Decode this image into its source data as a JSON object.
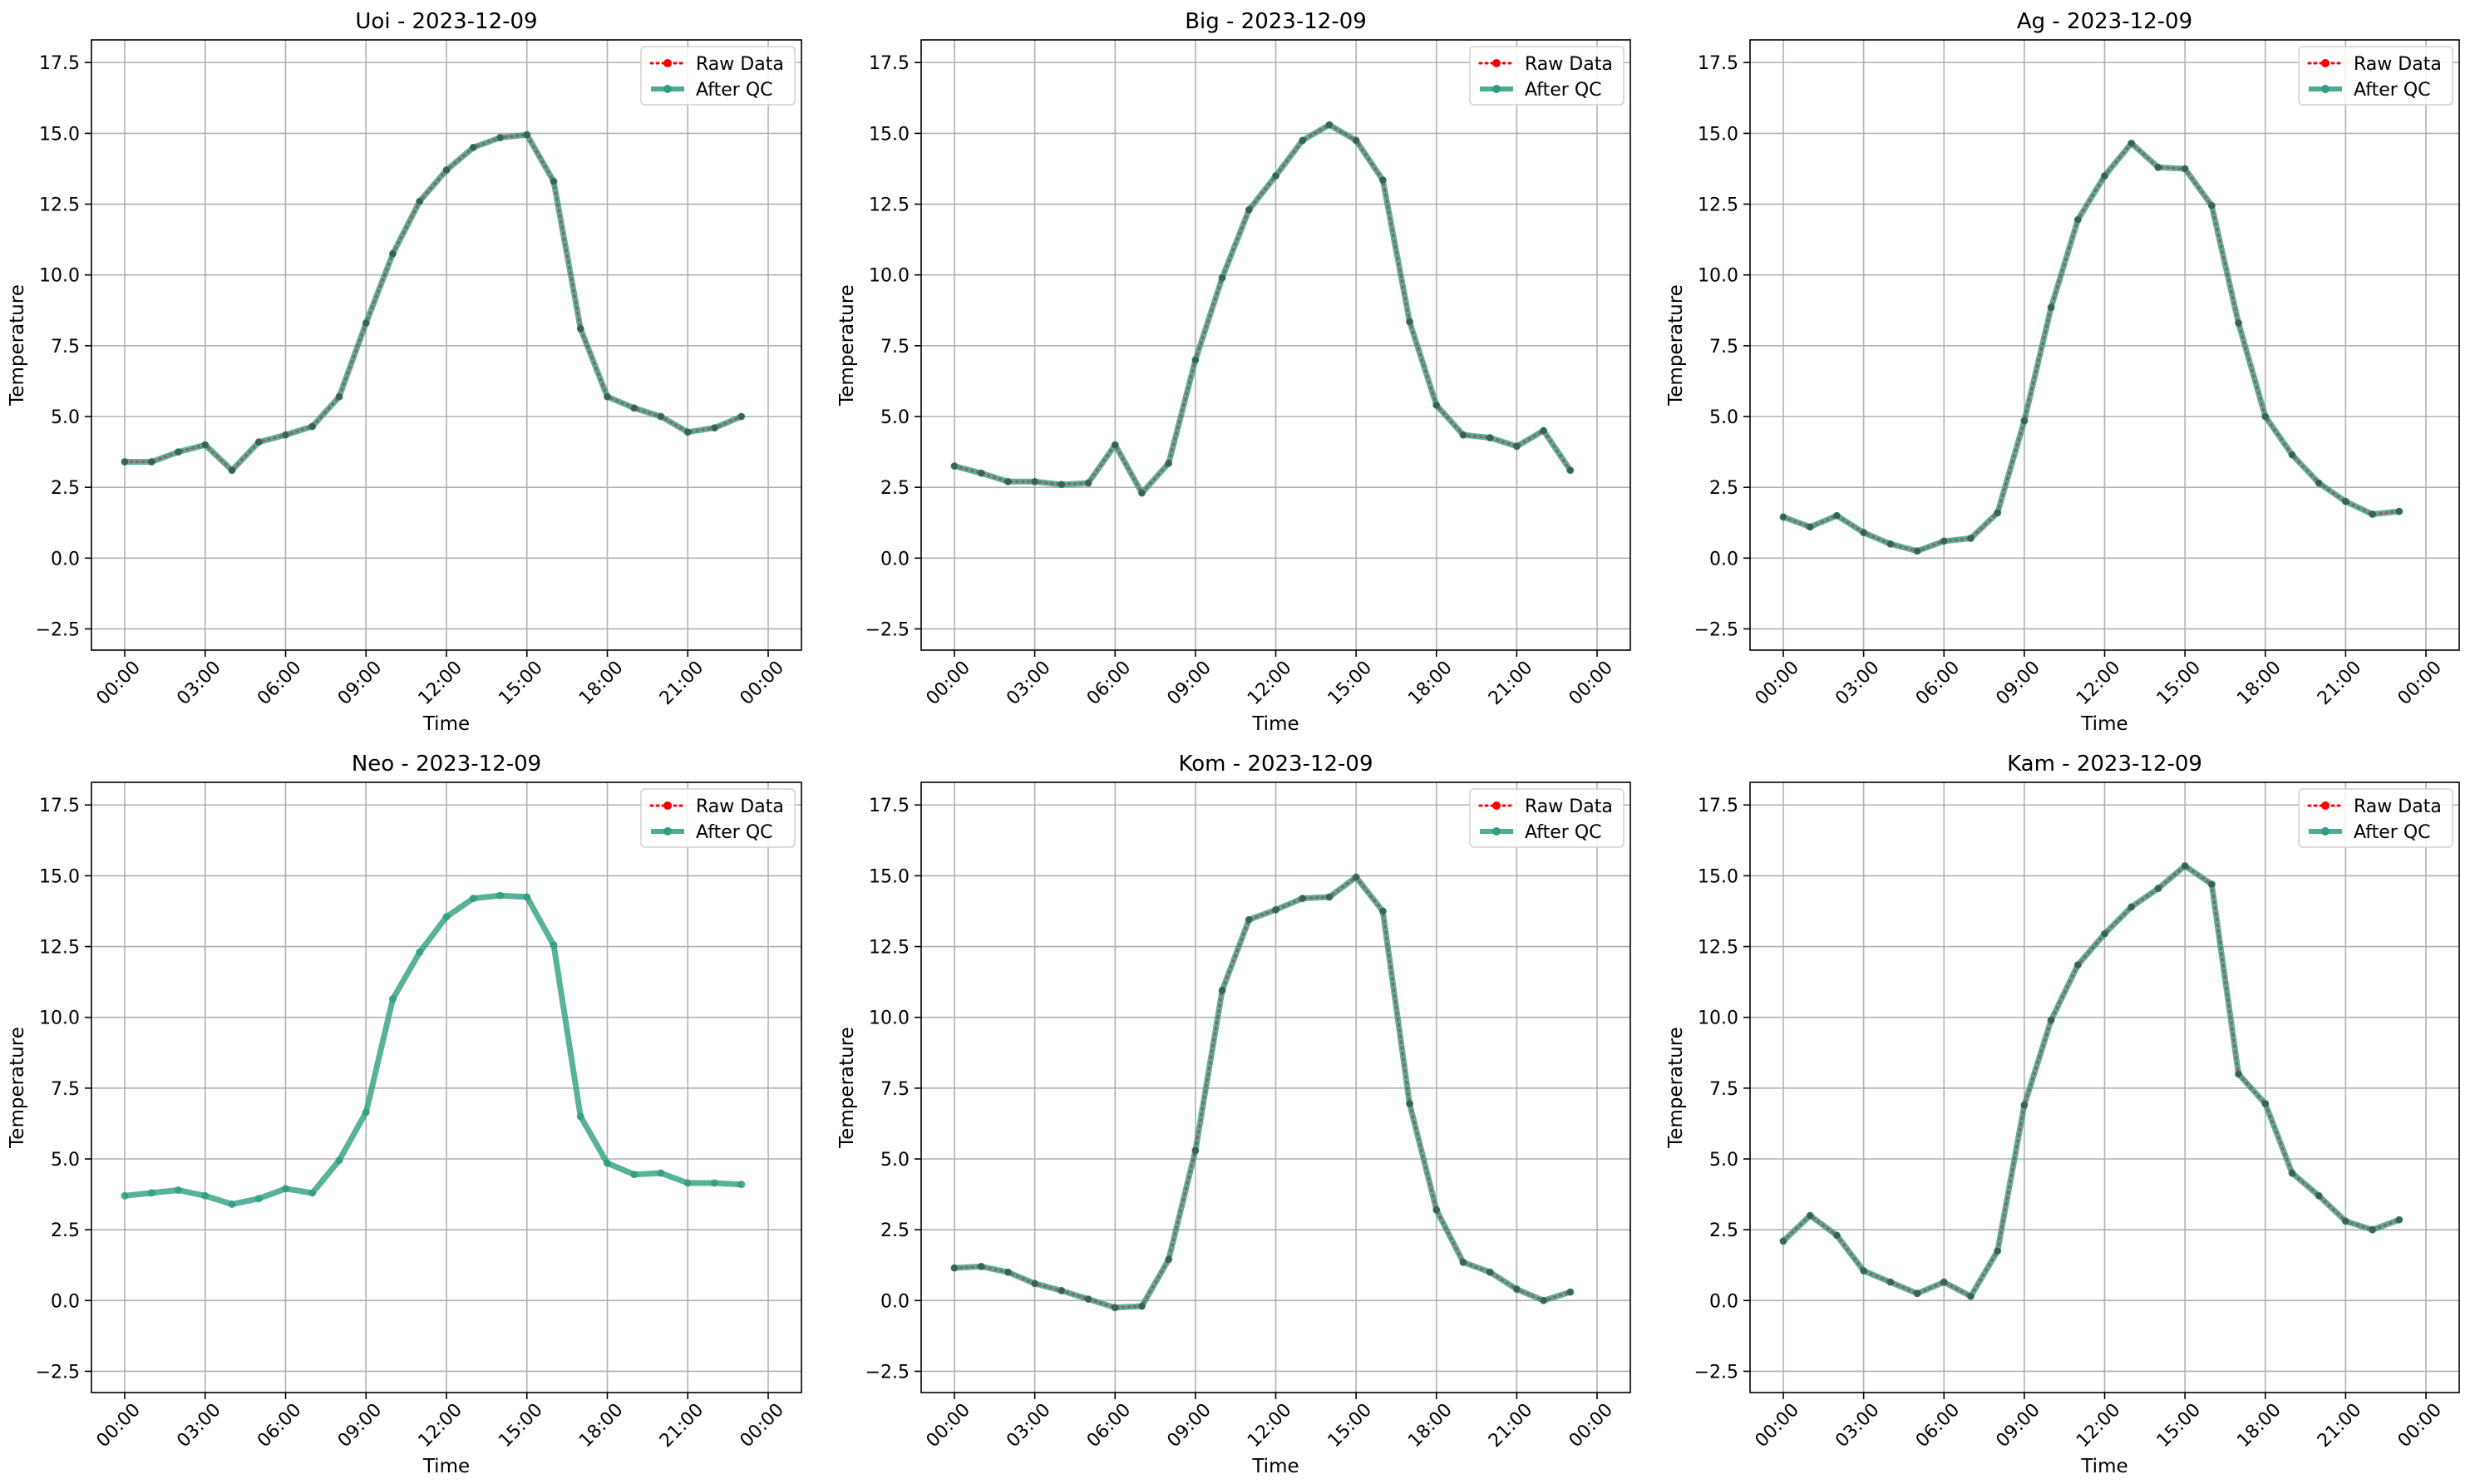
{
  "chart_data": [
    {
      "type": "line",
      "title": "Uoi - 2023-12-09",
      "xlabel": "Time",
      "ylabel": "Temperature",
      "x": [
        "00:00",
        "01:00",
        "02:00",
        "03:00",
        "04:00",
        "05:00",
        "06:00",
        "07:00",
        "08:00",
        "09:00",
        "10:00",
        "11:00",
        "12:00",
        "13:00",
        "14:00",
        "15:00",
        "16:00",
        "17:00",
        "18:00",
        "19:00",
        "20:00",
        "21:00",
        "22:00",
        "23:00"
      ],
      "series": [
        {
          "name": "Raw Data",
          "color": "#ff0000",
          "style": "dotted",
          "marker": "circle",
          "values": [
            3.4,
            3.4,
            3.75,
            4.0,
            3.1,
            4.1,
            4.35,
            4.65,
            5.7,
            8.3,
            10.75,
            12.6,
            13.7,
            14.5,
            14.85,
            14.95,
            13.3,
            8.1,
            5.7,
            5.3,
            5.0,
            4.45,
            4.6,
            5.0
          ]
        },
        {
          "name": "After QC",
          "color": "#2e9e80",
          "style": "solid",
          "marker": "circle",
          "values": [
            3.4,
            3.4,
            3.75,
            4.0,
            3.1,
            4.1,
            4.35,
            4.65,
            5.7,
            8.3,
            10.75,
            12.6,
            13.7,
            14.5,
            14.85,
            14.95,
            13.3,
            8.1,
            5.7,
            5.3,
            5.0,
            4.45,
            4.6,
            5.0
          ]
        }
      ],
      "xticks": [
        "00:00",
        "03:00",
        "06:00",
        "09:00",
        "12:00",
        "15:00",
        "18:00",
        "21:00",
        "00:00"
      ],
      "yticks": [
        "−2.5",
        "0.0",
        "2.5",
        "5.0",
        "7.5",
        "10.0",
        "12.5",
        "15.0",
        "17.5"
      ],
      "ylim": [
        -3.25,
        18.3
      ],
      "grid": true,
      "legend_position": "top-right"
    },
    {
      "type": "line",
      "title": "Big - 2023-12-09",
      "xlabel": "Time",
      "ylabel": "Temperature",
      "x": [
        "00:00",
        "01:00",
        "02:00",
        "03:00",
        "04:00",
        "05:00",
        "06:00",
        "07:00",
        "08:00",
        "09:00",
        "10:00",
        "11:00",
        "12:00",
        "13:00",
        "14:00",
        "15:00",
        "16:00",
        "17:00",
        "18:00",
        "19:00",
        "20:00",
        "21:00",
        "22:00",
        "23:00"
      ],
      "series": [
        {
          "name": "Raw Data",
          "color": "#ff0000",
          "style": "dotted",
          "marker": "circle",
          "values": [
            3.25,
            3.0,
            2.7,
            2.7,
            2.6,
            2.65,
            4.0,
            2.3,
            3.35,
            7.0,
            9.9,
            12.3,
            13.5,
            14.75,
            15.3,
            14.75,
            13.35,
            8.35,
            5.4,
            4.35,
            4.25,
            3.95,
            4.5,
            3.1
          ]
        },
        {
          "name": "After QC",
          "color": "#2e9e80",
          "style": "solid",
          "marker": "circle",
          "values": [
            3.25,
            3.0,
            2.7,
            2.7,
            2.6,
            2.65,
            4.0,
            2.3,
            3.35,
            7.0,
            9.9,
            12.3,
            13.5,
            14.75,
            15.3,
            14.75,
            13.35,
            8.35,
            5.4,
            4.35,
            4.25,
            3.95,
            4.5,
            3.1
          ]
        }
      ],
      "xticks": [
        "00:00",
        "03:00",
        "06:00",
        "09:00",
        "12:00",
        "15:00",
        "18:00",
        "21:00",
        "00:00"
      ],
      "yticks": [
        "−2.5",
        "0.0",
        "2.5",
        "5.0",
        "7.5",
        "10.0",
        "12.5",
        "15.0",
        "17.5"
      ],
      "ylim": [
        -3.25,
        18.3
      ],
      "grid": true,
      "legend_position": "top-right"
    },
    {
      "type": "line",
      "title": "Ag - 2023-12-09",
      "xlabel": "Time",
      "ylabel": "Temperature",
      "x": [
        "00:00",
        "01:00",
        "02:00",
        "03:00",
        "04:00",
        "05:00",
        "06:00",
        "07:00",
        "08:00",
        "09:00",
        "10:00",
        "11:00",
        "12:00",
        "13:00",
        "14:00",
        "15:00",
        "16:00",
        "17:00",
        "18:00",
        "19:00",
        "20:00",
        "21:00",
        "22:00",
        "23:00"
      ],
      "series": [
        {
          "name": "Raw Data",
          "color": "#ff0000",
          "style": "dotted",
          "marker": "circle",
          "values": [
            1.45,
            1.1,
            1.5,
            0.9,
            0.5,
            0.25,
            0.6,
            0.7,
            1.6,
            4.85,
            8.85,
            11.95,
            13.5,
            14.65,
            13.8,
            13.75,
            12.45,
            8.3,
            5.0,
            3.65,
            2.65,
            2.0,
            1.55,
            1.65
          ]
        },
        {
          "name": "After QC",
          "color": "#2e9e80",
          "style": "solid",
          "marker": "circle",
          "values": [
            1.45,
            1.1,
            1.5,
            0.9,
            0.5,
            0.25,
            0.6,
            0.7,
            1.6,
            4.85,
            8.85,
            11.95,
            13.5,
            14.65,
            13.8,
            13.75,
            12.45,
            8.3,
            5.0,
            3.65,
            2.65,
            2.0,
            1.55,
            1.65
          ]
        }
      ],
      "xticks": [
        "00:00",
        "03:00",
        "06:00",
        "09:00",
        "12:00",
        "15:00",
        "18:00",
        "21:00",
        "00:00"
      ],
      "yticks": [
        "−2.5",
        "0.0",
        "2.5",
        "5.0",
        "7.5",
        "10.0",
        "12.5",
        "15.0",
        "17.5"
      ],
      "ylim": [
        -3.25,
        18.3
      ],
      "grid": true,
      "legend_position": "top-right"
    },
    {
      "type": "line",
      "title": "Neo - 2023-12-09",
      "xlabel": "Time",
      "ylabel": "Temperature",
      "x": [
        "00:00",
        "01:00",
        "02:00",
        "03:00",
        "04:00",
        "05:00",
        "06:00",
        "07:00",
        "08:00",
        "09:00",
        "10:00",
        "11:00",
        "12:00",
        "13:00",
        "14:00",
        "15:00",
        "16:00",
        "17:00",
        "18:00",
        "19:00",
        "20:00",
        "21:00",
        "22:00",
        "23:00"
      ],
      "series": [
        {
          "name": "Raw Data",
          "color": "#ff0000",
          "style": "dotted",
          "marker": "circle",
          "values": [
            null,
            null,
            null,
            null,
            null,
            null,
            null,
            null,
            null,
            null,
            null,
            null,
            null,
            null,
            null,
            null,
            null,
            null,
            null,
            null,
            null,
            null,
            null,
            null
          ]
        },
        {
          "name": "After QC",
          "color": "#2e9e80",
          "style": "solid",
          "marker": "circle",
          "values": [
            3.7,
            3.8,
            3.9,
            3.7,
            3.4,
            3.6,
            3.95,
            3.8,
            4.95,
            6.65,
            10.65,
            12.3,
            13.55,
            14.2,
            14.3,
            14.25,
            12.55,
            6.5,
            4.85,
            4.45,
            4.5,
            4.15,
            4.15,
            4.1
          ]
        }
      ],
      "xticks": [
        "00:00",
        "03:00",
        "06:00",
        "09:00",
        "12:00",
        "15:00",
        "18:00",
        "21:00",
        "00:00"
      ],
      "yticks": [
        "−2.5",
        "0.0",
        "2.5",
        "5.0",
        "7.5",
        "10.0",
        "12.5",
        "15.0",
        "17.5"
      ],
      "ylim": [
        -3.25,
        18.3
      ],
      "grid": true,
      "legend_position": "top-right"
    },
    {
      "type": "line",
      "title": "Kom - 2023-12-09",
      "xlabel": "Time",
      "ylabel": "Temperature",
      "x": [
        "00:00",
        "01:00",
        "02:00",
        "03:00",
        "04:00",
        "05:00",
        "06:00",
        "07:00",
        "08:00",
        "09:00",
        "10:00",
        "11:00",
        "12:00",
        "13:00",
        "14:00",
        "15:00",
        "16:00",
        "17:00",
        "18:00",
        "19:00",
        "20:00",
        "21:00",
        "22:00",
        "23:00"
      ],
      "series": [
        {
          "name": "Raw Data",
          "color": "#ff0000",
          "style": "dotted",
          "marker": "circle",
          "values": [
            1.15,
            1.2,
            1.0,
            0.6,
            0.35,
            0.05,
            -0.25,
            -0.2,
            1.45,
            5.3,
            10.95,
            13.45,
            13.8,
            14.2,
            14.25,
            14.95,
            13.75,
            6.95,
            3.2,
            1.35,
            1.0,
            0.4,
            0.0,
            0.3
          ]
        },
        {
          "name": "After QC",
          "color": "#2e9e80",
          "style": "solid",
          "marker": "circle",
          "values": [
            1.15,
            1.2,
            1.0,
            0.6,
            0.35,
            0.05,
            -0.25,
            -0.2,
            1.45,
            5.3,
            10.95,
            13.45,
            13.8,
            14.2,
            14.25,
            14.95,
            13.75,
            6.95,
            3.2,
            1.35,
            1.0,
            0.4,
            0.0,
            0.3
          ]
        }
      ],
      "xticks": [
        "00:00",
        "03:00",
        "06:00",
        "09:00",
        "12:00",
        "15:00",
        "18:00",
        "21:00",
        "00:00"
      ],
      "yticks": [
        "−2.5",
        "0.0",
        "2.5",
        "5.0",
        "7.5",
        "10.0",
        "12.5",
        "15.0",
        "17.5"
      ],
      "ylim": [
        -3.25,
        18.3
      ],
      "grid": true,
      "legend_position": "top-right"
    },
    {
      "type": "line",
      "title": "Kam - 2023-12-09",
      "xlabel": "Time",
      "ylabel": "Temperature",
      "x": [
        "00:00",
        "01:00",
        "02:00",
        "03:00",
        "04:00",
        "05:00",
        "06:00",
        "07:00",
        "08:00",
        "09:00",
        "10:00",
        "11:00",
        "12:00",
        "13:00",
        "14:00",
        "15:00",
        "16:00",
        "17:00",
        "18:00",
        "19:00",
        "20:00",
        "21:00",
        "22:00",
        "23:00"
      ],
      "series": [
        {
          "name": "Raw Data",
          "color": "#ff0000",
          "style": "dotted",
          "marker": "circle",
          "values": [
            2.1,
            3.0,
            2.3,
            1.05,
            0.65,
            0.25,
            0.65,
            0.15,
            1.75,
            6.9,
            9.9,
            11.85,
            12.95,
            13.9,
            14.55,
            15.35,
            14.7,
            8.0,
            6.95,
            4.5,
            3.7,
            2.8,
            2.5,
            2.85
          ]
        },
        {
          "name": "After QC",
          "color": "#2e9e80",
          "style": "solid",
          "marker": "circle",
          "values": [
            2.1,
            3.0,
            2.3,
            1.05,
            0.65,
            0.25,
            0.65,
            0.15,
            1.75,
            6.9,
            9.9,
            11.85,
            12.95,
            13.9,
            14.55,
            15.35,
            14.7,
            8.0,
            6.95,
            4.5,
            3.7,
            2.8,
            2.5,
            2.85
          ]
        }
      ],
      "xticks": [
        "00:00",
        "03:00",
        "06:00",
        "09:00",
        "12:00",
        "15:00",
        "18:00",
        "21:00",
        "00:00"
      ],
      "yticks": [
        "−2.5",
        "0.0",
        "2.5",
        "5.0",
        "7.5",
        "10.0",
        "12.5",
        "15.0",
        "17.5"
      ],
      "ylim": [
        -3.25,
        18.3
      ],
      "grid": true,
      "legend_position": "top-right"
    }
  ]
}
